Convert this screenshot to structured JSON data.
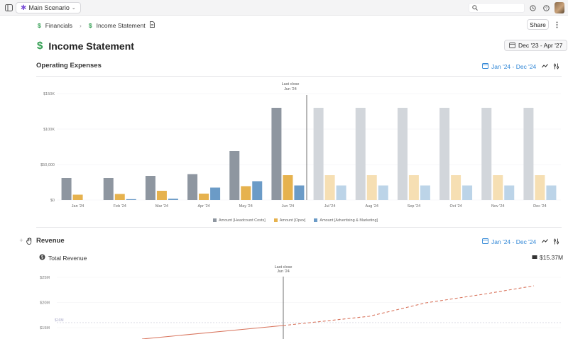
{
  "topbar": {
    "scenario_label": "Main Scenario",
    "search_placeholder": ""
  },
  "breadcrumb": {
    "parent": "Financials",
    "current": "Income Statement"
  },
  "header": {
    "share_label": "Share",
    "title": "Income Statement",
    "date_range": "Dec '23 - Apr '27"
  },
  "opex": {
    "title": "Operating Expenses",
    "period": "Jan '24 - Dec '24"
  },
  "revenue": {
    "title": "Revenue",
    "period": "Jan '24 - Dec '24",
    "metric_label": "Total Revenue",
    "metric_value": "$15.37M"
  },
  "chart_data": [
    {
      "type": "bar",
      "title": "Operating Expenses",
      "categories": [
        "Jan '24",
        "Feb '24",
        "Mar '24",
        "Apr '24",
        "May '24",
        "Jun '24",
        "Jul '24",
        "Aug '24",
        "Sep '24",
        "Oct '24",
        "Nov '24",
        "Dec '24"
      ],
      "series": [
        {
          "name": "Amount [Headcount Costs]",
          "color": "#8e96a0",
          "forecast_color": "#d2d6db",
          "values": [
            31000,
            31000,
            34000,
            36500,
            69000,
            130000,
            130000,
            130000,
            130000,
            130000,
            130000,
            130000
          ]
        },
        {
          "name": "Amount [Opex]",
          "color": "#e6b24e",
          "forecast_color": "#f6dfb3",
          "values": [
            7500,
            8500,
            13000,
            9000,
            19500,
            35000,
            35000,
            35000,
            35000,
            35000,
            35000,
            35000
          ]
        },
        {
          "name": "Amount [Advertising & Marketing]",
          "color": "#6b9bc7",
          "forecast_color": "#bcd4e8",
          "values": [
            0,
            1200,
            1800,
            17500,
            26500,
            20500,
            20500,
            20500,
            20500,
            20500,
            20500,
            20500
          ]
        }
      ],
      "ylim": [
        0,
        150000
      ],
      "yticks": [
        0,
        50000,
        100000,
        150000
      ],
      "ytick_labels": [
        "$0",
        "$50,000",
        "$100K",
        "$150K"
      ],
      "last_close_label": "Last close",
      "last_close_period": "Jun '24",
      "actual_months": 6
    },
    {
      "type": "line",
      "title": "Total Revenue",
      "yticks": [
        15000000,
        20000000,
        25000000
      ],
      "ytick_labels": [
        "$15M",
        "$20M",
        "$25M"
      ],
      "reference_line": {
        "value": 16000000,
        "label": "$16M"
      },
      "last_close_label": "Last close",
      "last_close_period": "Jun '24",
      "color": "#d9765f"
    }
  ]
}
